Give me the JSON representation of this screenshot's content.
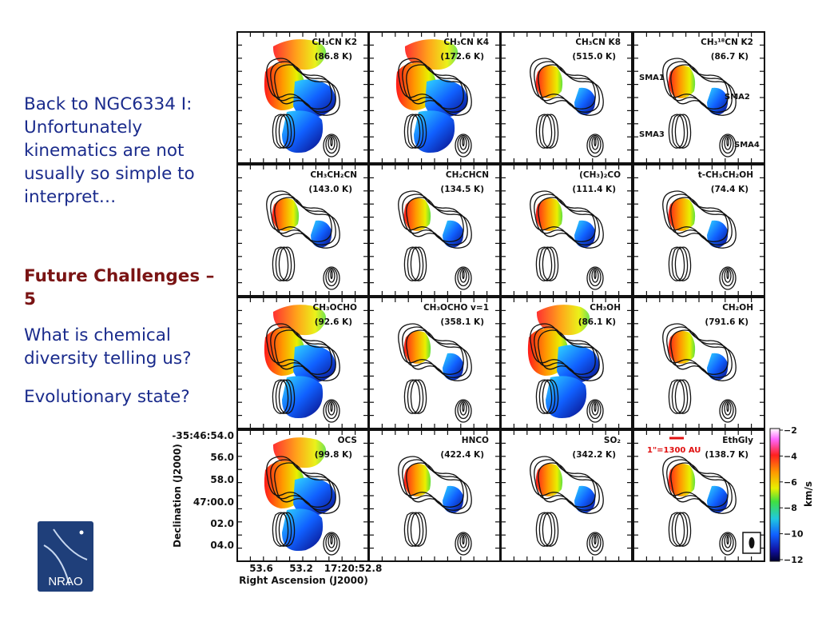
{
  "text": {
    "intro": "Back to NGC6334 I: Unfortunately kinematics are not usually so simple to interpret…",
    "challenge": "Future Challenges – 5",
    "q1": "What is chemical diversity telling us?",
    "q2": "Evolutionary state?"
  },
  "panels": [
    {
      "label": "CH₃CN K2",
      "temp": "(86.8 K)"
    },
    {
      "label": "CH₃CN K4",
      "temp": "(172.6 K)"
    },
    {
      "label": "CH₃CN K8",
      "temp": "(515.0 K)"
    },
    {
      "label": "CH₃¹⁸CN K2",
      "temp": "(86.7 K)"
    },
    {
      "label": "CH₃CH₂CN",
      "temp": "(143.0 K)"
    },
    {
      "label": "CH₂CHCN",
      "temp": "(134.5 K)"
    },
    {
      "label": "(CH₃)₂CO",
      "temp": "(111.4 K)"
    },
    {
      "label": "t-CH₃CH₂OH",
      "temp": "(74.4 K)"
    },
    {
      "label": "CH₃OCHO",
      "temp": "(92.6 K)"
    },
    {
      "label": "CH₃OCHO v=1",
      "temp": "(358.1 K)"
    },
    {
      "label": "CH₃OH",
      "temp": "(86.1 K)"
    },
    {
      "label": "CH₂OH",
      "temp": "(791.6 K)"
    },
    {
      "label": "OCS",
      "temp": "(99.8 K)"
    },
    {
      "label": "HNCO",
      "temp": "(422.4 K)"
    },
    {
      "label": "SO₂",
      "temp": "(342.2 K)"
    },
    {
      "label": "EthGly",
      "temp": "(138.7 K)"
    }
  ],
  "sources": [
    "SMA1",
    "SMA2",
    "SMA3",
    "SMA4"
  ],
  "scalebar": "1\"=1300 AU",
  "yaxis": {
    "label": "Declination (J2000)",
    "ticks": [
      "-35:46:54.0",
      "56.0",
      "58.0",
      "47:00.0",
      "02.0",
      "04.0"
    ]
  },
  "xaxis": {
    "label": "Right Ascension (J2000)",
    "ticks": [
      "53.6",
      "53.2",
      "17:20:52.8"
    ]
  },
  "colorbar": {
    "label": "km/s",
    "ticks": [
      "−2",
      "−4",
      "−6",
      "−8",
      "−10",
      "−12"
    ]
  },
  "colors": {
    "body_text": "#1a2b8c",
    "heading": "#7a1414",
    "scalebar": "#e01010"
  },
  "logo_text": "NRAO"
}
